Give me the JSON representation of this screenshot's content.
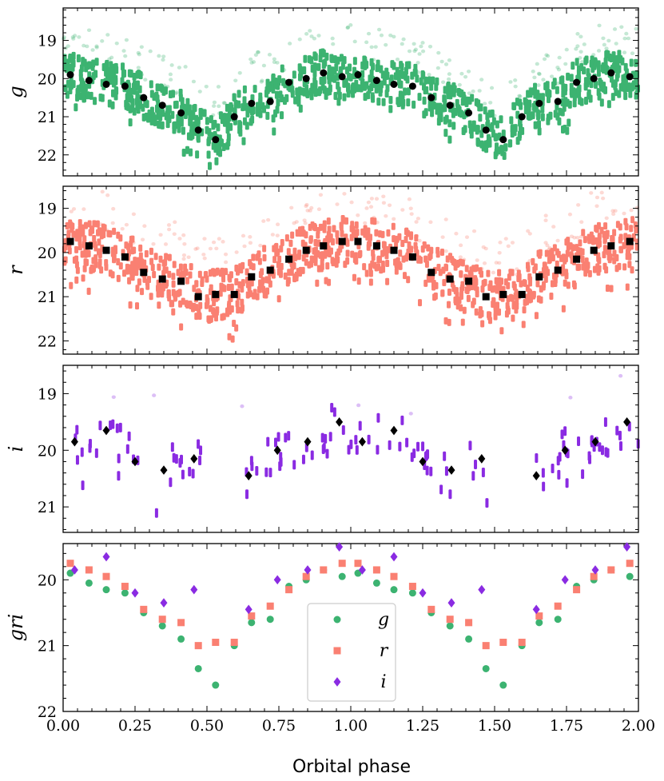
{
  "chart_data": {
    "type": "scatter",
    "xlabel": "Orbital phase",
    "xlim": [
      0.0,
      2.0
    ],
    "xticks": [
      "0.00",
      "0.25",
      "0.50",
      "0.75",
      "1.00",
      "1.25",
      "1.50",
      "1.75",
      "2.00"
    ],
    "colors": {
      "g": "#3cb371",
      "r": "#fa8072",
      "i": "#8a2be2",
      "binned": "#000000"
    },
    "panels": [
      {
        "name": "g",
        "ylabel": "g",
        "ylim": [
          22.55,
          18.15
        ],
        "yticks": [
          "19",
          "20",
          "21",
          "22"
        ],
        "marker": "circle",
        "binned": {
          "x": [
            0.025,
            0.09,
            0.15,
            0.215,
            0.28,
            0.345,
            0.41,
            0.47,
            0.53,
            0.595,
            0.655,
            0.72,
            0.785,
            0.845,
            0.905,
            0.97
          ],
          "y": [
            19.9,
            20.05,
            20.15,
            20.2,
            20.5,
            20.7,
            20.9,
            21.35,
            21.6,
            21.0,
            20.65,
            20.6,
            20.1,
            20.0,
            19.85,
            19.95
          ]
        }
      },
      {
        "name": "r",
        "ylabel": "r",
        "ylim": [
          22.3,
          18.5
        ],
        "yticks": [
          "19",
          "20",
          "21",
          "22"
        ],
        "marker": "square",
        "binned": {
          "x": [
            0.025,
            0.09,
            0.15,
            0.215,
            0.28,
            0.345,
            0.41,
            0.47,
            0.53,
            0.595,
            0.655,
            0.72,
            0.785,
            0.845,
            0.905,
            0.97
          ],
          "y": [
            19.75,
            19.85,
            19.95,
            20.1,
            20.45,
            20.6,
            20.65,
            21.0,
            20.95,
            20.95,
            20.55,
            20.4,
            20.15,
            19.95,
            19.85,
            19.75
          ]
        }
      },
      {
        "name": "i",
        "ylabel": "i",
        "ylim": [
          21.45,
          18.5
        ],
        "yticks": [
          "19",
          "20",
          "21"
        ],
        "marker": "diamond",
        "binned": {
          "x": [
            0.04,
            0.15,
            0.25,
            0.35,
            0.455,
            0.645,
            0.745,
            0.85,
            0.96
          ],
          "y": [
            19.85,
            19.65,
            20.2,
            20.35,
            20.15,
            20.45,
            20.0,
            19.85,
            19.5
          ]
        }
      },
      {
        "name": "gri",
        "ylabel": "gri",
        "ylim": [
          22.0,
          19.45
        ],
        "yticks": [
          "20",
          "21",
          "22"
        ]
      }
    ],
    "legend": {
      "location": "lower-center",
      "entries": [
        {
          "label": "g",
          "series": "g"
        },
        {
          "label": "r",
          "series": "r"
        },
        {
          "label": "i",
          "series": "i"
        }
      ]
    }
  }
}
